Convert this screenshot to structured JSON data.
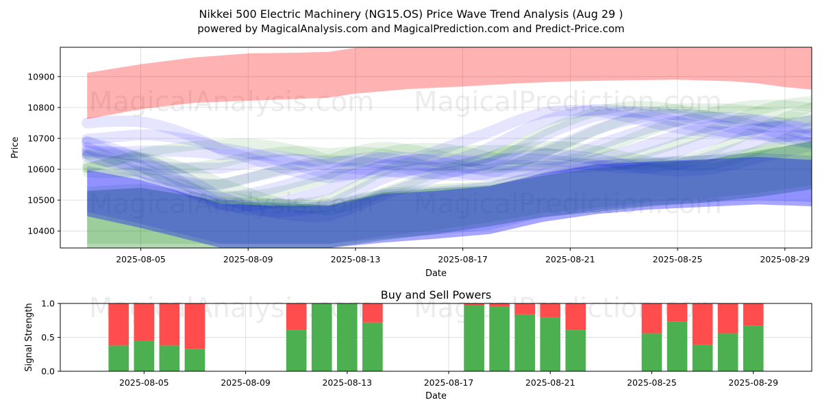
{
  "title_line1": "Nikkei 500 Electric Machinery (NG15.OS) Price Wave Trend Analysis (Aug 29 )",
  "title_line2": "powered by MagicalAnalysis.com and MagicalPrediction.com and Predict-Price.com",
  "watermarks": [
    "MagicalAnalysis.com",
    "MagicalPrediction.com"
  ],
  "colors": {
    "red_band": "#ff0000",
    "green_band": "#008000",
    "blue_band": "#0000ff",
    "buy": "#4caf50",
    "sell": "#ff4d4d"
  },
  "chart_data": [
    {
      "type": "area",
      "title": "",
      "xlabel": "Date",
      "ylabel": "Price",
      "x_range": [
        "2025-08-02",
        "2025-08-30"
      ],
      "ylim": [
        10345,
        10995
      ],
      "x_ticks": [
        "2025-08-05",
        "2025-08-09",
        "2025-08-13",
        "2025-08-17",
        "2025-08-21",
        "2025-08-25",
        "2025-08-29"
      ],
      "y_ticks": [
        10400,
        10500,
        10600,
        10700,
        10800,
        10900
      ],
      "grid": true,
      "series": [
        {
          "color": "red",
          "x": [
            "2025-08-03",
            "2025-08-05",
            "2025-08-07",
            "2025-08-09",
            "2025-08-11",
            "2025-08-12",
            "2025-08-13",
            "2025-08-15",
            "2025-08-17",
            "2025-08-19",
            "2025-08-21",
            "2025-08-23",
            "2025-08-25",
            "2025-08-27",
            "2025-08-28",
            "2025-08-29",
            "2025-08-30"
          ],
          "upper": [
            10912,
            10940,
            10962,
            10975,
            10978,
            10980,
            10993,
            10995,
            10995,
            10995,
            10995,
            10995,
            10995,
            10995,
            10995,
            10995,
            10995
          ],
          "lower": [
            10762,
            10795,
            10815,
            10822,
            10828,
            10832,
            10845,
            10860,
            10868,
            10878,
            10885,
            10888,
            10890,
            10885,
            10878,
            10866,
            10858
          ]
        },
        {
          "color": "green",
          "x": [
            "2025-08-03",
            "2025-08-05",
            "2025-08-08",
            "2025-08-10",
            "2025-08-12",
            "2025-08-14",
            "2025-08-16",
            "2025-08-18",
            "2025-08-20",
            "2025-08-22",
            "2025-08-24",
            "2025-08-26",
            "2025-08-28",
            "2025-08-30"
          ],
          "upper": [
            10530,
            10540,
            10498,
            10490,
            10485,
            10525,
            10538,
            10548,
            10580,
            10605,
            10620,
            10630,
            10660,
            10690
          ],
          "lower": [
            10345,
            10345,
            10345,
            10345,
            10345,
            10370,
            10390,
            10415,
            10445,
            10462,
            10480,
            10492,
            10510,
            10535
          ]
        },
        {
          "color": "blue",
          "x": [
            "2025-08-03",
            "2025-08-05",
            "2025-08-08",
            "2025-08-10",
            "2025-08-12",
            "2025-08-14",
            "2025-08-16",
            "2025-08-18",
            "2025-08-20",
            "2025-08-22",
            "2025-08-24",
            "2025-08-26",
            "2025-08-28",
            "2025-08-30"
          ],
          "upper": [
            10598,
            10565,
            10488,
            10482,
            10482,
            10520,
            10530,
            10545,
            10588,
            10615,
            10625,
            10632,
            10640,
            10630
          ],
          "lower": [
            10448,
            10410,
            10345,
            10345,
            10345,
            10362,
            10375,
            10390,
            10430,
            10455,
            10470,
            10478,
            10486,
            10480
          ]
        }
      ]
    },
    {
      "type": "bar",
      "title": "Buy and Sell Powers",
      "xlabel": "Date",
      "ylabel": "Signal Strength",
      "ylim": [
        0,
        1
      ],
      "y_ticks": [
        "0.0",
        "0.5",
        "1.0"
      ],
      "x_ticks": [
        "2025-08-05",
        "2025-08-09",
        "2025-08-13",
        "2025-08-17",
        "2025-08-21",
        "2025-08-25",
        "2025-08-29"
      ],
      "categories": [
        "2025-08-04",
        "2025-08-05",
        "2025-08-06",
        "2025-08-07",
        "2025-08-11",
        "2025-08-12",
        "2025-08-13",
        "2025-08-14",
        "2025-08-18",
        "2025-08-19",
        "2025-08-20",
        "2025-08-21",
        "2025-08-22",
        "2025-08-25",
        "2025-08-26",
        "2025-08-27",
        "2025-08-28",
        "2025-08-29"
      ],
      "series": [
        {
          "values": [
            0.38,
            0.45,
            0.38,
            0.33,
            0.61,
            1.0,
            1.0,
            0.72,
            0.97,
            0.95,
            0.84,
            0.79,
            0.61,
            0.56,
            0.73,
            0.39,
            0.56,
            0.67
          ]
        },
        {
          "values": [
            0.62,
            0.55,
            0.62,
            0.67,
            0.39,
            0.0,
            0.0,
            0.28,
            0.03,
            0.05,
            0.16,
            0.21,
            0.39,
            0.44,
            0.27,
            0.61,
            0.44,
            0.33
          ]
        }
      ]
    }
  ]
}
